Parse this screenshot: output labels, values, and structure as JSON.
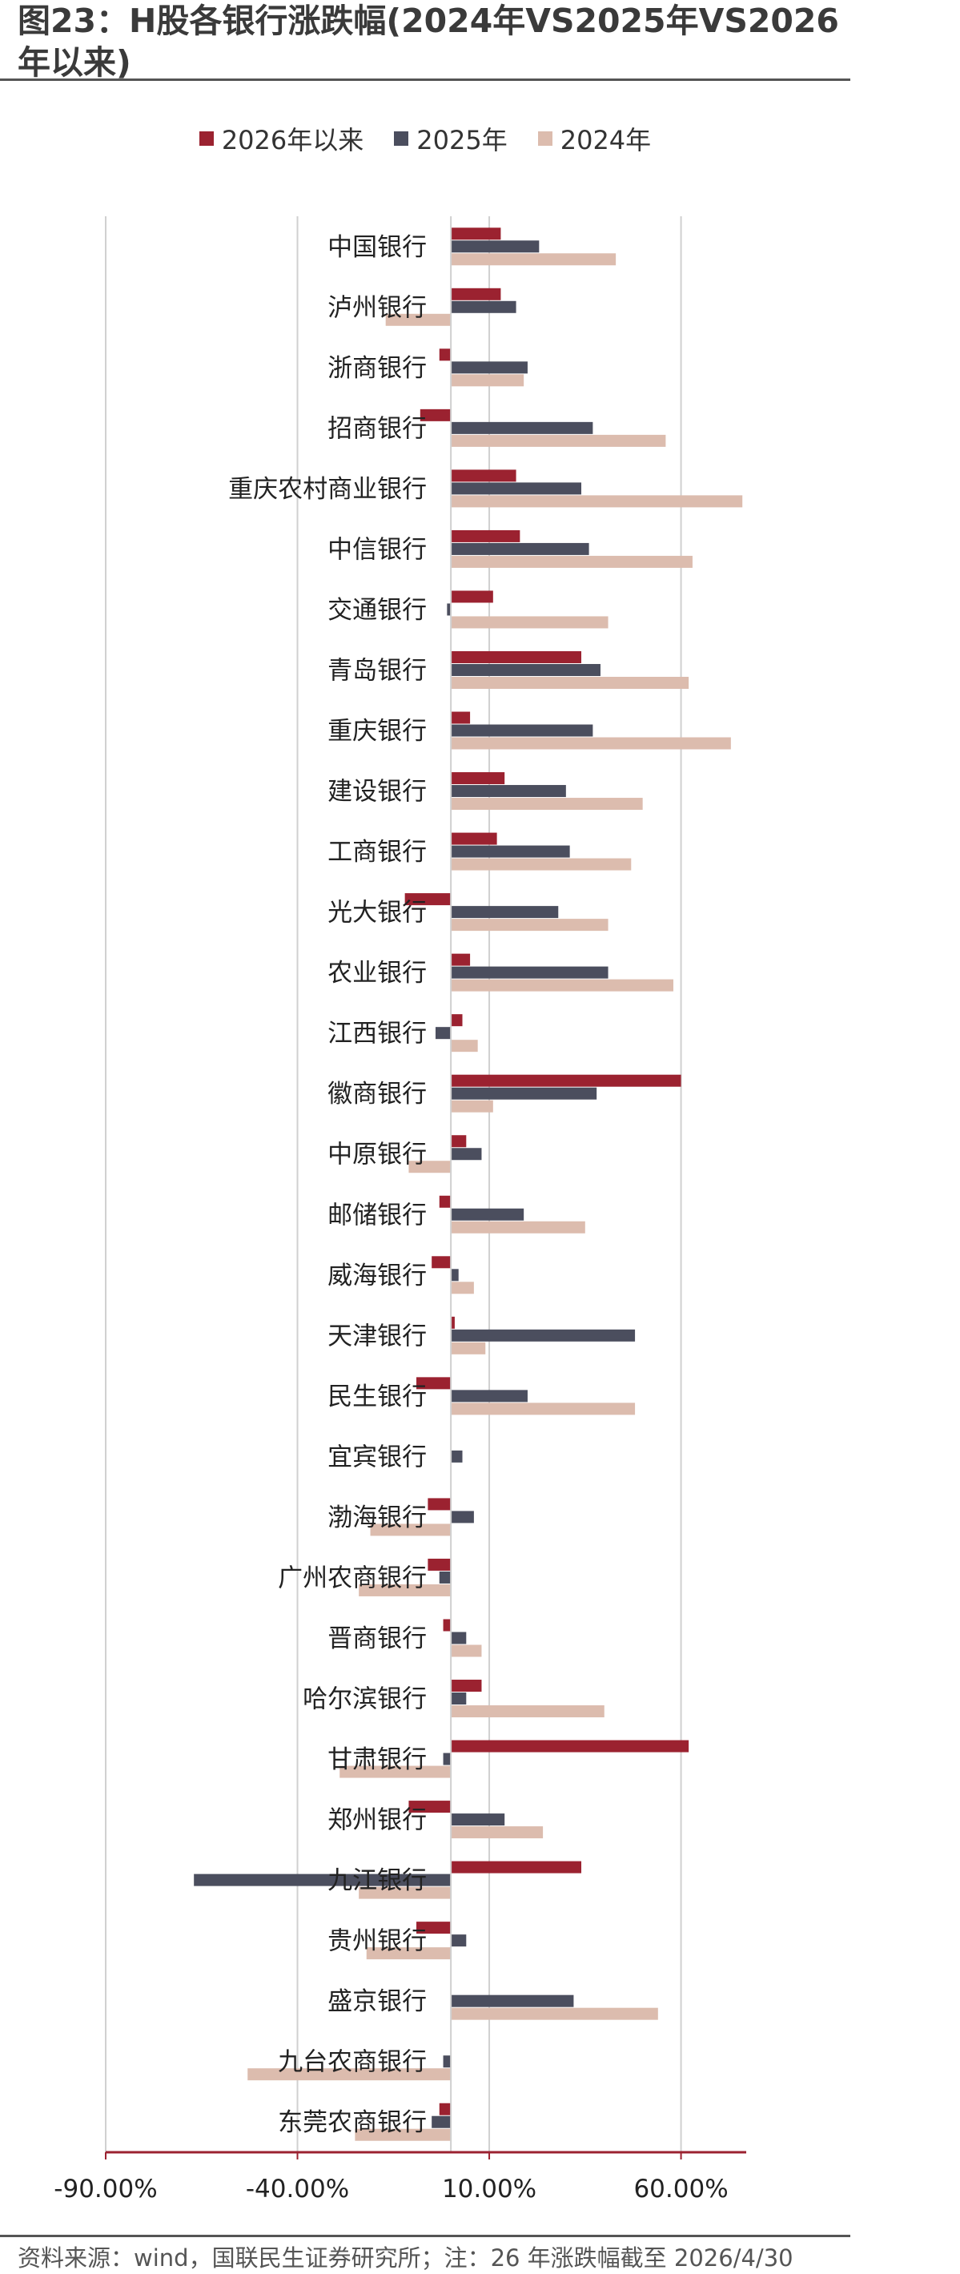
{
  "title": "图23：H股各银行涨跌幅(2024年VS2025年VS2026年以来)",
  "source": "资料来源：wind，国联民生证券研究所；注：26 年涨跌幅截至 2026/4/30",
  "colors": {
    "s2026": "#9b2230",
    "s2025": "#4b4e5e",
    "s2024": "#dcbcae",
    "axis": "#9b2230",
    "grid": "#d0d0d0"
  },
  "chart_data": {
    "type": "bar",
    "orientation": "horizontal",
    "categories": [
      "中国银行",
      "泸州银行",
      "浙商银行",
      "招商银行",
      "重庆农村商业银行",
      "中信银行",
      "交通银行",
      "青岛银行",
      "重庆银行",
      "建设银行",
      "工商银行",
      "光大银行",
      "农业银行",
      "江西银行",
      "徽商银行",
      "中原银行",
      "邮储银行",
      "威海银行",
      "天津银行",
      "民生银行",
      "宜宾银行",
      "渤海银行",
      "广州农商银行",
      "晋商银行",
      "哈尔滨银行",
      "甘肃银行",
      "郑州银行",
      "九江银行",
      "贵州银行",
      "盛京银行",
      "九台农商银行",
      "东莞农商银行"
    ],
    "series": [
      {
        "name": "2026年以来",
        "values": [
          13,
          13,
          -3,
          -8,
          17,
          18,
          11,
          34,
          5,
          14,
          12,
          -12,
          5,
          3,
          60,
          4,
          -3,
          -5,
          1,
          -9,
          0,
          -6,
          -6,
          -2,
          8,
          62,
          -11,
          34,
          -9,
          0,
          0,
          -3
        ]
      },
      {
        "name": "2025年",
        "values": [
          23,
          17,
          20,
          37,
          34,
          36,
          -1,
          39,
          37,
          30,
          31,
          28,
          41,
          -4,
          38,
          8,
          19,
          2,
          48,
          20,
          3,
          6,
          -3,
          4,
          4,
          -2,
          14,
          -67,
          4,
          32,
          -2,
          -5
        ]
      },
      {
        "name": "2024年",
        "values": [
          43,
          -17,
          19,
          56,
          76,
          63,
          41,
          62,
          73,
          50,
          47,
          41,
          58,
          7,
          11,
          -11,
          35,
          6,
          9,
          48,
          0,
          -21,
          -24,
          8,
          40,
          -29,
          24,
          -24,
          -22,
          54,
          -53,
          -25
        ]
      }
    ],
    "xlim": [
      -90,
      77
    ],
    "xticks": [
      "-90.00%",
      "-40.00%",
      "10.00%",
      "60.00%"
    ],
    "xtick_values": [
      -90,
      -40,
      10,
      60
    ],
    "grid": true,
    "legend_position": "top"
  }
}
